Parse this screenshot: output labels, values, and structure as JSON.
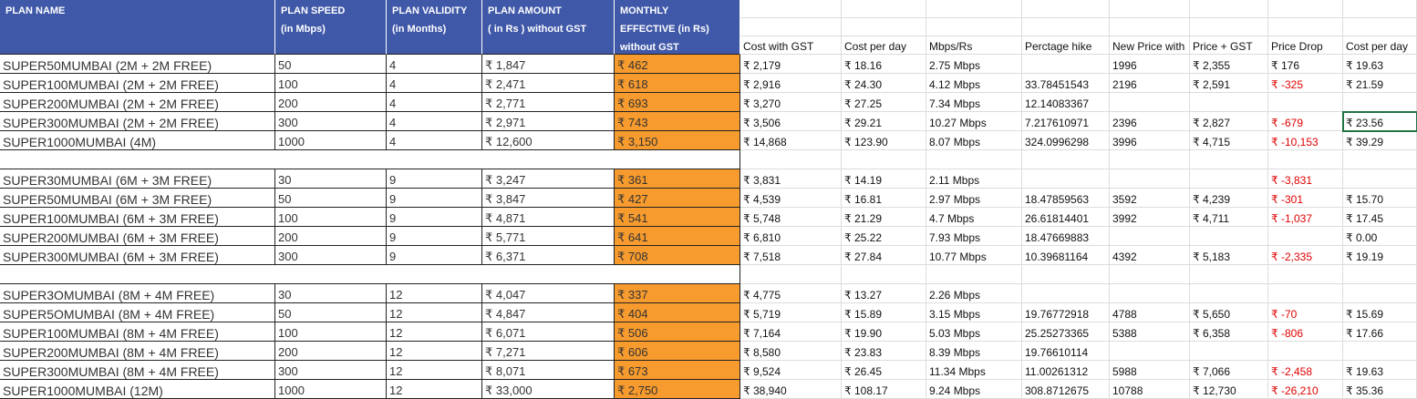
{
  "header": {
    "left": [
      [
        "PLAN NAME"
      ],
      [
        "PLAN SPEED",
        "(in Mbps)"
      ],
      [
        "PLAN VALIDITY",
        "(in Months)"
      ],
      [
        "PLAN AMOUNT",
        "( in Rs ) without GST"
      ],
      [
        "MONTHLY",
        "EFFECTIVE (in Rs)",
        "without GST"
      ]
    ],
    "right": [
      "Cost with GST",
      "Cost per day",
      "Mbps/Rs",
      "Perctage hike",
      "New Price with",
      "Price + GST",
      "Price Drop",
      "Cost per day"
    ]
  },
  "groups": [
    {
      "rows": [
        [
          "SUPER50MUMBAI (2M + 2M FREE)",
          50,
          4,
          "₹ 1,847",
          "₹ 462",
          "₹ 2,179",
          "₹ 18.16",
          "2.75 Mbps",
          null,
          1996,
          "₹ 2,355",
          "₹ 176",
          "₹ 19.63"
        ],
        [
          "SUPER100MUMBAI (2M + 2M FREE)",
          100,
          4,
          "₹ 2,471",
          "₹ 618",
          "₹ 2,916",
          "₹ 24.30",
          "4.12 Mbps",
          33.78451543,
          2196,
          "₹ 2,591",
          "₹ -325",
          "₹ 21.59"
        ],
        [
          "SUPER200MUMBAI (2M + 2M FREE)",
          200,
          4,
          "₹ 2,771",
          "₹ 693",
          "₹ 3,270",
          "₹ 27.25",
          "7.34 Mbps",
          12.14083367,
          null,
          null,
          null,
          null
        ],
        [
          "SUPER300MUMBAI (2M + 2M FREE)",
          300,
          4,
          "₹ 2,971",
          "₹ 743",
          "₹ 3,506",
          "₹ 29.21",
          "10.27 Mbps",
          7.217610971,
          2396,
          "₹ 2,827",
          "₹ -679",
          "₹ 23.56"
        ],
        [
          "SUPER1000MUMBAI (4M)",
          1000,
          4,
          "₹ 12,600",
          "₹ 3,150",
          "₹ 14,868",
          "₹ 123.90",
          "8.07 Mbps",
          324.0996298,
          3996,
          "₹ 4,715",
          "₹ -10,153",
          "₹ 39.29"
        ]
      ]
    },
    {
      "rows": [
        [
          "SUPER30MUMBAI (6M + 3M FREE)",
          30,
          9,
          "₹ 3,247",
          "₹ 361",
          "₹ 3,831",
          "₹ 14.19",
          "2.11 Mbps",
          null,
          null,
          null,
          "₹ -3,831",
          null
        ],
        [
          "SUPER50MUMBAI (6M + 3M FREE)",
          50,
          9,
          "₹ 3,847",
          "₹ 427",
          "₹ 4,539",
          "₹ 16.81",
          "2.97 Mbps",
          18.47859563,
          3592,
          "₹ 4,239",
          "₹ -301",
          "₹ 15.70"
        ],
        [
          "SUPER100MUMBAI (6M + 3M FREE)",
          100,
          9,
          "₹ 4,871",
          "₹ 541",
          "₹ 5,748",
          "₹ 21.29",
          "4.7 Mbps",
          26.61814401,
          3992,
          "₹ 4,711",
          "₹ -1,037",
          "₹ 17.45"
        ],
        [
          "SUPER200MUMBAI (6M + 3M FREE)",
          200,
          9,
          "₹ 5,771",
          "₹ 641",
          "₹ 6,810",
          "₹ 25.22",
          "7.93 Mbps",
          18.47669883,
          null,
          null,
          null,
          "₹ 0.00"
        ],
        [
          "SUPER300MUMBAI (6M + 3M FREE)",
          300,
          9,
          "₹ 6,371",
          "₹ 708",
          "₹ 7,518",
          "₹ 27.84",
          "10.77 Mbps",
          10.39681164,
          4392,
          "₹ 5,183",
          "₹ -2,335",
          "₹ 19.19"
        ]
      ]
    },
    {
      "rows": [
        [
          "SUPER3OMUMBAI (8M + 4M FREE)",
          30,
          12,
          "₹ 4,047",
          "₹ 337",
          "₹ 4,775",
          "₹ 13.27",
          "2.26 Mbps",
          null,
          null,
          null,
          null,
          null
        ],
        [
          "SUPER5OMUMBAI (8M + 4M FREE)",
          50,
          12,
          "₹ 4,847",
          "₹ 404",
          "₹ 5,719",
          "₹ 15.89",
          "3.15 Mbps",
          19.76772918,
          4788,
          "₹ 5,650",
          "₹ -70",
          "₹ 15.69"
        ],
        [
          "SUPER100MUMBAI (8M + 4M FREE)",
          100,
          12,
          "₹ 6,071",
          "₹ 506",
          "₹ 7,164",
          "₹ 19.90",
          "5.03 Mbps",
          25.25273365,
          5388,
          "₹ 6,358",
          "₹ -806",
          "₹ 17.66"
        ],
        [
          "SUPER200MUMBAI (8M + 4M FREE)",
          200,
          12,
          "₹ 7,271",
          "₹ 606",
          "₹ 8,580",
          "₹ 23.83",
          "8.39 Mbps",
          19.76610114,
          null,
          null,
          null,
          null
        ],
        [
          "SUPER300MUMBAI (8M + 4M FREE)",
          300,
          12,
          "₹ 8,071",
          "₹ 673",
          "₹ 9,524",
          "₹ 26.45",
          "11.34 Mbps",
          11.00261312,
          5988,
          "₹ 7,066",
          "₹ -2,458",
          "₹ 19.63"
        ],
        [
          "SUPER1000MUMBAI (12M)",
          1000,
          12,
          "₹ 33,000",
          "₹ 2,750",
          "₹ 38,940",
          "₹ 108.17",
          "9.24 Mbps",
          308.8712675,
          10788,
          "₹ 12,730",
          "₹ -26,210",
          "₹ 35.36"
        ]
      ]
    }
  ]
}
